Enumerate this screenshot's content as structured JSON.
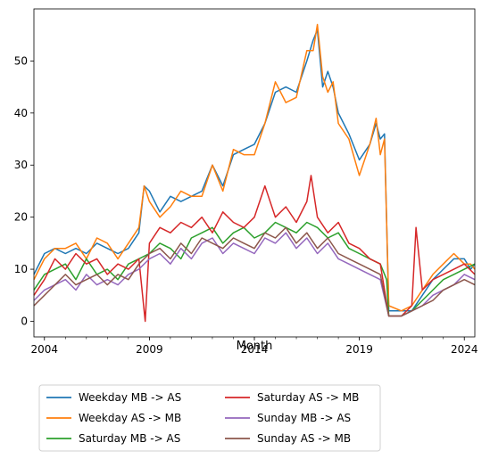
{
  "chart_data": {
    "type": "line",
    "title": "",
    "xlabel": "Month",
    "ylabel": "",
    "xlim": [
      2003.5,
      2024.5
    ],
    "ylim": [
      -3,
      60
    ],
    "x_ticks": [
      {
        "value": 2004,
        "label": "2004"
      },
      {
        "value": 2009,
        "label": "2009"
      },
      {
        "value": 2014,
        "label": "2014"
      },
      {
        "value": 2019,
        "label": "2019"
      },
      {
        "value": 2024,
        "label": "2024"
      }
    ],
    "y_ticks": [
      0,
      10,
      20,
      30,
      40,
      50
    ],
    "grid": false,
    "legend": {
      "placement": "below plot, 2 columns"
    },
    "series": [
      {
        "name": "Weekday MB -> AS",
        "color": "#1f77b4",
        "points": [
          [
            2003.5,
            9
          ],
          [
            2004,
            13
          ],
          [
            2004.5,
            14
          ],
          [
            2005,
            13
          ],
          [
            2005.5,
            14
          ],
          [
            2006,
            13
          ],
          [
            2006.5,
            15
          ],
          [
            2007,
            14
          ],
          [
            2007.5,
            13
          ],
          [
            2008,
            14
          ],
          [
            2008.5,
            17
          ],
          [
            2008.75,
            26
          ],
          [
            2009,
            25
          ],
          [
            2009.5,
            21
          ],
          [
            2010,
            24
          ],
          [
            2010.5,
            23
          ],
          [
            2011,
            24
          ],
          [
            2011.5,
            25
          ],
          [
            2012,
            30
          ],
          [
            2012.5,
            26
          ],
          [
            2013,
            32
          ],
          [
            2013.5,
            33
          ],
          [
            2014,
            34
          ],
          [
            2014.5,
            38
          ],
          [
            2015,
            44
          ],
          [
            2015.5,
            45
          ],
          [
            2016,
            44
          ],
          [
            2016.5,
            50
          ],
          [
            2016.8,
            54
          ],
          [
            2017,
            56
          ],
          [
            2017.25,
            45
          ],
          [
            2017.5,
            48
          ],
          [
            2017.75,
            45
          ],
          [
            2018,
            40
          ],
          [
            2018.5,
            36
          ],
          [
            2019,
            31
          ],
          [
            2019.5,
            34
          ],
          [
            2019.8,
            38
          ],
          [
            2020,
            35
          ],
          [
            2020.2,
            36
          ],
          [
            2020.4,
            2
          ],
          [
            2021,
            2
          ],
          [
            2021.5,
            2
          ],
          [
            2022,
            5
          ],
          [
            2022.5,
            8
          ],
          [
            2023,
            10
          ],
          [
            2023.5,
            12
          ],
          [
            2024,
            12
          ],
          [
            2024.3,
            10
          ],
          [
            2024.5,
            11
          ]
        ]
      },
      {
        "name": "Weekday AS -> MB",
        "color": "#ff7f0e",
        "points": [
          [
            2003.5,
            8
          ],
          [
            2004,
            12
          ],
          [
            2004.5,
            14
          ],
          [
            2005,
            14
          ],
          [
            2005.5,
            15
          ],
          [
            2006,
            12
          ],
          [
            2006.5,
            16
          ],
          [
            2007,
            15
          ],
          [
            2007.5,
            12
          ],
          [
            2008,
            15
          ],
          [
            2008.5,
            18
          ],
          [
            2008.75,
            26
          ],
          [
            2009,
            23
          ],
          [
            2009.5,
            20
          ],
          [
            2010,
            22
          ],
          [
            2010.5,
            25
          ],
          [
            2011,
            24
          ],
          [
            2011.5,
            24
          ],
          [
            2012,
            30
          ],
          [
            2012.5,
            25
          ],
          [
            2013,
            33
          ],
          [
            2013.5,
            32
          ],
          [
            2014,
            32
          ],
          [
            2014.5,
            38
          ],
          [
            2015,
            46
          ],
          [
            2015.5,
            42
          ],
          [
            2016,
            43
          ],
          [
            2016.5,
            52
          ],
          [
            2016.8,
            52
          ],
          [
            2017,
            57
          ],
          [
            2017.25,
            47
          ],
          [
            2017.5,
            44
          ],
          [
            2017.75,
            46
          ],
          [
            2018,
            38
          ],
          [
            2018.5,
            35
          ],
          [
            2019,
            28
          ],
          [
            2019.5,
            34
          ],
          [
            2019.8,
            39
          ],
          [
            2020,
            32
          ],
          [
            2020.2,
            35
          ],
          [
            2020.4,
            3
          ],
          [
            2021,
            2
          ],
          [
            2021.5,
            3
          ],
          [
            2022,
            6
          ],
          [
            2022.5,
            9
          ],
          [
            2023,
            11
          ],
          [
            2023.5,
            13
          ],
          [
            2024,
            11
          ],
          [
            2024.3,
            11
          ],
          [
            2024.5,
            10
          ]
        ]
      },
      {
        "name": "Saturday MB -> AS",
        "color": "#2ca02c",
        "points": [
          [
            2003.5,
            6
          ],
          [
            2004,
            9
          ],
          [
            2004.5,
            10
          ],
          [
            2005,
            11
          ],
          [
            2005.5,
            8
          ],
          [
            2006,
            12
          ],
          [
            2006.5,
            9
          ],
          [
            2007,
            10
          ],
          [
            2007.5,
            8
          ],
          [
            2008,
            11
          ],
          [
            2008.5,
            12
          ],
          [
            2009,
            13
          ],
          [
            2009.5,
            15
          ],
          [
            2010,
            14
          ],
          [
            2010.5,
            12
          ],
          [
            2011,
            16
          ],
          [
            2011.5,
            17
          ],
          [
            2012,
            18
          ],
          [
            2012.5,
            15
          ],
          [
            2013,
            17
          ],
          [
            2013.5,
            18
          ],
          [
            2014,
            16
          ],
          [
            2014.5,
            17
          ],
          [
            2015,
            19
          ],
          [
            2015.5,
            18
          ],
          [
            2016,
            17
          ],
          [
            2016.5,
            19
          ],
          [
            2017,
            18
          ],
          [
            2017.5,
            16
          ],
          [
            2018,
            17
          ],
          [
            2018.5,
            14
          ],
          [
            2019,
            13
          ],
          [
            2019.5,
            12
          ],
          [
            2020,
            11
          ],
          [
            2020.3,
            8
          ],
          [
            2020.4,
            1
          ],
          [
            2021,
            1
          ],
          [
            2021.5,
            2
          ],
          [
            2022,
            4
          ],
          [
            2022.5,
            6
          ],
          [
            2023,
            8
          ],
          [
            2023.5,
            9
          ],
          [
            2024,
            10
          ],
          [
            2024.5,
            11
          ]
        ]
      },
      {
        "name": "Saturday AS -> MB",
        "color": "#d62728",
        "points": [
          [
            2003.5,
            5
          ],
          [
            2004,
            8
          ],
          [
            2004.5,
            12
          ],
          [
            2005,
            10
          ],
          [
            2005.5,
            13
          ],
          [
            2006,
            11
          ],
          [
            2006.5,
            12
          ],
          [
            2007,
            9
          ],
          [
            2007.5,
            11
          ],
          [
            2008,
            10
          ],
          [
            2008.5,
            12
          ],
          [
            2008.8,
            0
          ],
          [
            2009,
            15
          ],
          [
            2009.5,
            18
          ],
          [
            2010,
            17
          ],
          [
            2010.5,
            19
          ],
          [
            2011,
            18
          ],
          [
            2011.5,
            20
          ],
          [
            2012,
            17
          ],
          [
            2012.5,
            21
          ],
          [
            2013,
            19
          ],
          [
            2013.5,
            18
          ],
          [
            2014,
            20
          ],
          [
            2014.5,
            26
          ],
          [
            2015,
            20
          ],
          [
            2015.5,
            22
          ],
          [
            2016,
            19
          ],
          [
            2016.5,
            23
          ],
          [
            2016.7,
            28
          ],
          [
            2017,
            20
          ],
          [
            2017.5,
            17
          ],
          [
            2018,
            19
          ],
          [
            2018.5,
            15
          ],
          [
            2019,
            14
          ],
          [
            2019.5,
            12
          ],
          [
            2020,
            11
          ],
          [
            2020.4,
            1
          ],
          [
            2021,
            1
          ],
          [
            2021.5,
            3
          ],
          [
            2021.7,
            18
          ],
          [
            2022,
            6
          ],
          [
            2022.5,
            8
          ],
          [
            2023,
            9
          ],
          [
            2023.5,
            10
          ],
          [
            2024,
            11
          ],
          [
            2024.5,
            9
          ]
        ]
      },
      {
        "name": "Sunday MB -> AS",
        "color": "#9467bd",
        "points": [
          [
            2003.5,
            4
          ],
          [
            2004,
            6
          ],
          [
            2004.5,
            7
          ],
          [
            2005,
            8
          ],
          [
            2005.5,
            6
          ],
          [
            2006,
            9
          ],
          [
            2006.5,
            7
          ],
          [
            2007,
            8
          ],
          [
            2007.5,
            7
          ],
          [
            2008,
            9
          ],
          [
            2008.5,
            10
          ],
          [
            2009,
            12
          ],
          [
            2009.5,
            13
          ],
          [
            2010,
            11
          ],
          [
            2010.5,
            14
          ],
          [
            2011,
            12
          ],
          [
            2011.5,
            15
          ],
          [
            2012,
            16
          ],
          [
            2012.5,
            13
          ],
          [
            2013,
            15
          ],
          [
            2013.5,
            14
          ],
          [
            2014,
            13
          ],
          [
            2014.5,
            16
          ],
          [
            2015,
            15
          ],
          [
            2015.5,
            17
          ],
          [
            2016,
            14
          ],
          [
            2016.5,
            16
          ],
          [
            2017,
            13
          ],
          [
            2017.5,
            15
          ],
          [
            2018,
            12
          ],
          [
            2018.5,
            11
          ],
          [
            2019,
            10
          ],
          [
            2019.5,
            9
          ],
          [
            2020,
            8
          ],
          [
            2020.4,
            1
          ],
          [
            2021,
            1
          ],
          [
            2021.5,
            2
          ],
          [
            2022,
            3
          ],
          [
            2022.5,
            5
          ],
          [
            2023,
            6
          ],
          [
            2023.5,
            7
          ],
          [
            2024,
            9
          ],
          [
            2024.5,
            8
          ]
        ]
      },
      {
        "name": "Sunday AS -> MB",
        "color": "#8c564b",
        "points": [
          [
            2003.5,
            3
          ],
          [
            2004,
            5
          ],
          [
            2004.5,
            7
          ],
          [
            2005,
            9
          ],
          [
            2005.5,
            7
          ],
          [
            2006,
            8
          ],
          [
            2006.5,
            9
          ],
          [
            2007,
            7
          ],
          [
            2007.5,
            9
          ],
          [
            2008,
            8
          ],
          [
            2008.5,
            11
          ],
          [
            2009,
            13
          ],
          [
            2009.5,
            14
          ],
          [
            2010,
            12
          ],
          [
            2010.5,
            15
          ],
          [
            2011,
            13
          ],
          [
            2011.5,
            16
          ],
          [
            2012,
            15
          ],
          [
            2012.5,
            14
          ],
          [
            2013,
            16
          ],
          [
            2013.5,
            15
          ],
          [
            2014,
            14
          ],
          [
            2014.5,
            17
          ],
          [
            2015,
            16
          ],
          [
            2015.5,
            18
          ],
          [
            2016,
            15
          ],
          [
            2016.5,
            17
          ],
          [
            2017,
            14
          ],
          [
            2017.5,
            16
          ],
          [
            2018,
            13
          ],
          [
            2018.5,
            12
          ],
          [
            2019,
            11
          ],
          [
            2019.5,
            10
          ],
          [
            2020,
            9
          ],
          [
            2020.4,
            1
          ],
          [
            2021,
            1
          ],
          [
            2021.5,
            2
          ],
          [
            2022,
            3
          ],
          [
            2022.5,
            4
          ],
          [
            2023,
            6
          ],
          [
            2023.5,
            7
          ],
          [
            2024,
            8
          ],
          [
            2024.5,
            7
          ]
        ]
      }
    ]
  }
}
